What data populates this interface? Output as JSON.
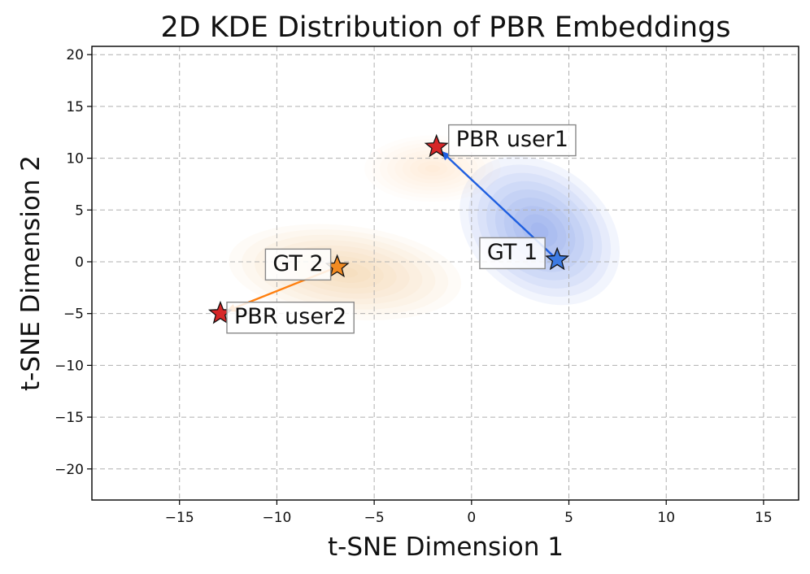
{
  "chart_data": {
    "type": "scatter",
    "title": "2D KDE Distribution of PBR Embeddings",
    "xlabel": "t-SNE Dimension 1",
    "ylabel": "t-SNE Dimension 2",
    "xlim": [
      -19.5,
      16.8
    ],
    "ylim": [
      -23,
      20.8
    ],
    "xticks": [
      -15,
      -10,
      -5,
      0,
      5,
      10,
      15
    ],
    "yticks": [
      -20,
      -15,
      -10,
      -5,
      0,
      5,
      10,
      15,
      20
    ],
    "xtick_labels": [
      "−15",
      "−10",
      "−5",
      "0",
      "5",
      "10",
      "15"
    ],
    "ytick_labels": [
      "−20",
      "−15",
      "−10",
      "−5",
      "0",
      "5",
      "10",
      "15",
      "20"
    ],
    "grid": true,
    "colors": {
      "blue_series": "#1f5fe0",
      "blue_star": "#3d7be3",
      "orange_series": "#ff7f0e",
      "orange_star": "#f28b22",
      "pbr_star": "#d62728",
      "kde_blue": "#4a7fe0",
      "kde_orange": "#f5a96a"
    },
    "kde": [
      {
        "name": "user1",
        "color": "kde_blue",
        "mean": [
          3.5,
          3.0
        ],
        "spread": [
          4.5,
          6.3
        ],
        "rho": -0.55,
        "intensity": 1.0
      },
      {
        "name": "user2",
        "color": "kde_orange",
        "mean": [
          -6.5,
          -1.0
        ],
        "spread": [
          6.0,
          4.5
        ],
        "rho": -0.15,
        "intensity": 0.7
      },
      {
        "name": "user2-tail",
        "color": "kde_orange",
        "mean": [
          -2.0,
          9.0
        ],
        "spread": [
          3.5,
          3.2
        ],
        "rho": 0.0,
        "intensity": 0.35
      }
    ],
    "points": [
      {
        "name": "gt1",
        "label": "GT 1",
        "x": 4.4,
        "y": 0.2,
        "color": "blue_star"
      },
      {
        "name": "pbr-user1",
        "label": "PBR user1",
        "x": -1.8,
        "y": 11.1,
        "color": "pbr_star"
      },
      {
        "name": "gt2",
        "label": "GT 2",
        "x": -6.9,
        "y": -0.5,
        "color": "orange_star"
      },
      {
        "name": "pbr-user2",
        "label": "PBR user2",
        "x": -12.9,
        "y": -5.0,
        "color": "pbr_star"
      }
    ],
    "arrows": [
      {
        "name": "arrow-user1",
        "from": "gt1",
        "to": "pbr-user1",
        "color": "blue_series"
      },
      {
        "name": "arrow-user2",
        "from": "gt2",
        "to": "pbr-user2",
        "color": "orange_series"
      }
    ]
  }
}
